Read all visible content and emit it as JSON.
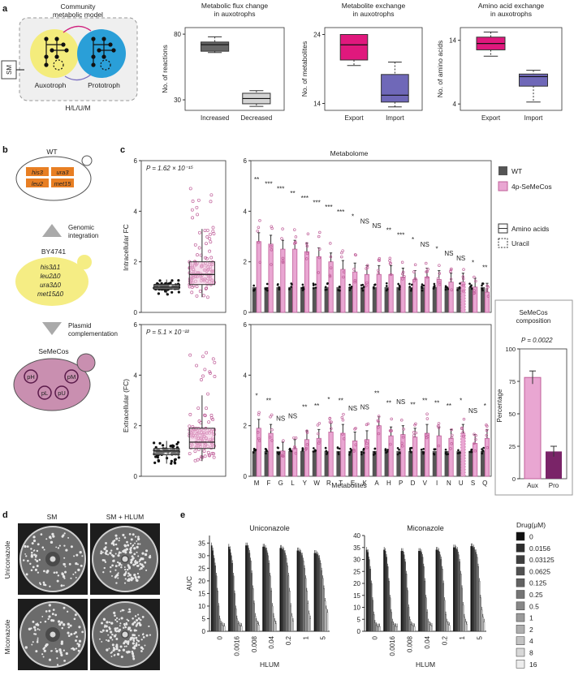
{
  "panel_labels": {
    "a": "a",
    "b": "b",
    "c": "c",
    "d": "d",
    "e": "e"
  },
  "panel_a": {
    "model_title_1": "Community",
    "model_title_2": "metabolic model",
    "auxotroph": "Auxotroph",
    "prototroph": "Prototroph",
    "sm": "SM",
    "hlum": "H/L/U/M",
    "colors": {
      "auxotroph": "#f4ec7c",
      "prototroph": "#2a9fd8",
      "flux_inc": "#666666",
      "flux_dec": "#d4d4d4",
      "export": "#e0187d",
      "import": "#6f68b8"
    }
  },
  "panel_b": {
    "wt": "WT",
    "genes": [
      "his3",
      "ura3",
      "leu2",
      "met15"
    ],
    "genomic_1": "Genomic",
    "genomic_2": "integration",
    "strain": "BY4741",
    "deletions": [
      "his3Δ1",
      "leu2Δ0",
      "ura3Δ0",
      "met15Δ0"
    ],
    "plasmid_1": "Plasmid",
    "plasmid_2": "complementation",
    "semecos": "SeMeCos",
    "plasmids": [
      "pH",
      "pM",
      "pL",
      "pU"
    ]
  },
  "panel_c": {
    "metabolome_title": "Metabolome",
    "legend_wt": "WT",
    "legend_semecos": "4p-SeMeCos",
    "legend_amino": "Amino acids",
    "legend_uracil": "Uracil",
    "p_intra": "P = 1.62 × 10⁻¹⁵",
    "p_extra": "P = 5.1 × 10⁻²²",
    "ylabel_intra": "Intracellular FC",
    "ylabel_extra": "Extracellular (FC)",
    "xlabel": "Metabolites",
    "composition_title_1": "SeMeCos",
    "composition_title_2": "composition",
    "p_comp": "P = 0.0022",
    "ylabel_comp": "Percentage",
    "colors": {
      "wt": "#555555",
      "semecos": "#e9a6d2",
      "semecos_edge": "#c0609a",
      "pro": "#7a2468"
    }
  },
  "panel_d": {
    "col_sm": "SM",
    "col_sm_hlum": "SM + HLUM",
    "row_uni": "Uniconazole",
    "row_mic": "Miconazole"
  },
  "panel_e": {
    "legend_title": "Drug(μM)",
    "drug_levels": [
      "0",
      "0.0156",
      "0.03125",
      "0.0625",
      "0.125",
      "0.25",
      "0.5",
      "1",
      "2",
      "4",
      "8",
      "16"
    ]
  },
  "chart_data": [
    {
      "type": "box",
      "title": "Metabolic flux change in auxotrophs",
      "ylabel": "No. of reactions",
      "categories": [
        "Increased",
        "Decreased"
      ],
      "yticks": [
        30,
        80
      ],
      "ylim": [
        22,
        85
      ],
      "boxes": [
        {
          "min": 66,
          "q1": 67,
          "median": 72,
          "q3": 74,
          "max": 78
        },
        {
          "min": 25,
          "q1": 27,
          "median": 31,
          "q3": 35,
          "max": 37
        }
      ]
    },
    {
      "type": "box",
      "title": "Metabolite exchange in auxotrophs",
      "ylabel": "No. of metabolites",
      "categories": [
        "Export",
        "Import"
      ],
      "yticks": [
        14,
        24
      ],
      "ylim": [
        13,
        25
      ],
      "boxes": [
        {
          "min": 19.5,
          "q1": 20.3,
          "median": 22.5,
          "q3": 24,
          "max": 24
        },
        {
          "min": 13.5,
          "q1": 14.2,
          "median": 15.2,
          "q3": 18.2,
          "max": 20
        }
      ]
    },
    {
      "type": "box",
      "title": "Amino acid exchange in auxotrophs",
      "ylabel": "No. of amino acids",
      "categories": [
        "Export",
        "Import"
      ],
      "yticks": [
        4,
        14
      ],
      "ylim": [
        3,
        16
      ],
      "boxes": [
        {
          "min": 11.5,
          "q1": 12.5,
          "median": 13.5,
          "q3": 14.5,
          "max": 15.3
        },
        {
          "min": 4.3,
          "q1": 6.8,
          "median": 8.3,
          "q3": 8.7,
          "max": 9.3
        }
      ]
    },
    {
      "type": "bar",
      "title": "Metabolome",
      "ylabel": "Intracellular FC",
      "yticks": [
        0,
        2,
        4,
        6
      ],
      "ylim": [
        0,
        6
      ],
      "categories": [
        "M",
        "F",
        "G",
        "L",
        "Y",
        "W",
        "R",
        "T",
        "E",
        "K",
        "A",
        "H",
        "P",
        "D",
        "V",
        "I",
        "N",
        "U",
        "S",
        "Q"
      ],
      "series": [
        {
          "name": "WT",
          "values": [
            1,
            1,
            1,
            1,
            1,
            1,
            1,
            1,
            1,
            1,
            1,
            1,
            1,
            1,
            1,
            1,
            1,
            1,
            1,
            1
          ]
        },
        {
          "name": "4p-SeMeCos",
          "values": [
            2.8,
            2.7,
            2.5,
            2.5,
            2.4,
            2.2,
            2.0,
            1.7,
            1.6,
            1.5,
            1.5,
            1.5,
            1.4,
            1.3,
            1.4,
            1.3,
            1.2,
            1.2,
            1.0,
            0.8
          ]
        }
      ],
      "significance": [
        "**",
        "***",
        "***",
        "**",
        "***",
        "***",
        "***",
        "***",
        "*",
        "NS",
        "NS",
        "**",
        "***",
        "*",
        "NS",
        "*",
        "NS",
        "NS",
        "*",
        "**"
      ]
    },
    {
      "type": "bar",
      "ylabel": "Extracellular (FC)",
      "xlabel": "Metabolites",
      "yticks": [
        0,
        2,
        4,
        6
      ],
      "ylim": [
        0,
        6
      ],
      "categories": [
        "M",
        "F",
        "G",
        "L",
        "Y",
        "W",
        "R",
        "T",
        "E",
        "K",
        "A",
        "H",
        "P",
        "D",
        "V",
        "I",
        "N",
        "U",
        "S",
        "Q"
      ],
      "series": [
        {
          "name": "WT",
          "values": [
            1,
            1,
            1,
            1,
            1,
            1,
            1,
            1,
            1,
            1,
            1,
            1,
            1,
            1,
            1,
            1,
            1,
            1,
            1,
            1
          ]
        },
        {
          "name": "4p-SeMeCos",
          "values": [
            1.9,
            1.7,
            1.0,
            1.1,
            1.45,
            1.5,
            1.75,
            1.7,
            1.4,
            1.45,
            2.0,
            1.6,
            1.65,
            1.55,
            1.7,
            1.6,
            1.5,
            1.7,
            1.3,
            1.5
          ]
        }
      ],
      "significance": [
        "*",
        "**",
        "NS",
        "NS",
        "**",
        "**",
        "*",
        "**",
        "NS",
        "NS",
        "**",
        "**",
        "NS",
        "**",
        "**",
        "**",
        "**",
        "*",
        "NS",
        "*"
      ]
    },
    {
      "type": "box",
      "ylabel": "Intracellular FC",
      "yticks": [
        0,
        2,
        4,
        6
      ],
      "ylim": [
        0,
        6
      ],
      "categories": [
        "WT",
        "4p-SeMeCos"
      ],
      "boxes": [
        {
          "min": 0.7,
          "q1": 0.92,
          "median": 1.0,
          "q3": 1.1,
          "max": 1.3
        },
        {
          "min": 0.6,
          "q1": 1.1,
          "median": 1.5,
          "q3": 2.0,
          "max": 3.3
        }
      ]
    },
    {
      "type": "box",
      "ylabel": "Extracellular (FC)",
      "yticks": [
        0,
        2,
        4,
        6
      ],
      "ylim": [
        0,
        6
      ],
      "categories": [
        "WT",
        "4p-SeMeCos"
      ],
      "boxes": [
        {
          "min": 0.5,
          "q1": 0.85,
          "median": 1.0,
          "q3": 1.1,
          "max": 1.4
        },
        {
          "min": 0.6,
          "q1": 1.1,
          "median": 1.35,
          "q3": 1.9,
          "max": 3.2
        }
      ]
    },
    {
      "type": "bar",
      "title": "SeMeCos composition",
      "ylabel": "Percentage",
      "categories": [
        "Aux",
        "Pro"
      ],
      "values": [
        78,
        21
      ],
      "errors": [
        5,
        4
      ],
      "yticks": [
        0,
        25,
        50,
        75,
        100
      ],
      "ylim": [
        0,
        100
      ]
    },
    {
      "type": "bar",
      "title": "Uniconazole",
      "xlabel": "HLUM",
      "ylabel": "AUC",
      "yticks": [
        0,
        5,
        10,
        15,
        20,
        25,
        30,
        35
      ],
      "ylim": [
        0,
        38
      ],
      "categories": [
        "0",
        "0.0016",
        "0.008",
        "0.04",
        "0.2",
        "1",
        "5"
      ],
      "groups": [
        [
          34,
          32,
          29,
          26,
          22,
          16,
          10,
          5,
          3,
          2.5,
          2.2,
          2
        ],
        [
          33.5,
          32.5,
          30,
          27,
          22,
          15,
          9,
          5,
          3,
          2.5,
          2.2,
          2
        ],
        [
          34,
          34,
          33,
          31,
          28,
          23,
          17,
          11,
          6,
          4,
          3,
          2.5
        ],
        [
          33.5,
          33.5,
          33,
          32,
          30,
          27,
          22,
          16,
          10,
          6,
          4,
          3
        ],
        [
          33,
          33,
          32.5,
          32,
          31,
          29,
          26,
          22,
          16,
          10,
          6,
          4
        ],
        [
          32,
          32,
          31.5,
          31,
          30,
          28,
          25,
          21,
          16,
          11,
          7,
          5
        ],
        [
          31,
          31,
          30.5,
          30,
          29,
          27,
          24,
          21,
          17,
          12,
          9,
          7.5
        ]
      ]
    },
    {
      "type": "bar",
      "title": "Miconazole",
      "xlabel": "HLUM",
      "ylabel": "",
      "yticks": [
        0,
        5,
        10,
        15,
        20,
        25,
        30,
        35,
        40
      ],
      "ylim": [
        0,
        40
      ],
      "categories": [
        "0",
        "0.0016",
        "0.008",
        "0.04",
        "0.2",
        "1",
        "5"
      ],
      "groups": [
        [
          34,
          33,
          30,
          26,
          20,
          13,
          7,
          3.5,
          2.5,
          2,
          2,
          2
        ],
        [
          34,
          33.5,
          31,
          27,
          21,
          14,
          8,
          4,
          2.8,
          2.2,
          2,
          2
        ],
        [
          33.5,
          33.5,
          32,
          29,
          24,
          17,
          10,
          5,
          3,
          2.5,
          2.2,
          2
        ],
        [
          33.5,
          33.5,
          33,
          31,
          27,
          21,
          14,
          8,
          4,
          3,
          2.5,
          2.2
        ],
        [
          34,
          34,
          33.5,
          32,
          30,
          26,
          20,
          13,
          7,
          4,
          3,
          2.5
        ],
        [
          35,
          35,
          34.5,
          34,
          32,
          29,
          24,
          18,
          11,
          6,
          4,
          3
        ],
        [
          35.5,
          35.5,
          35,
          34,
          33,
          31,
          27,
          21,
          14,
          9,
          6,
          4
        ]
      ]
    }
  ]
}
